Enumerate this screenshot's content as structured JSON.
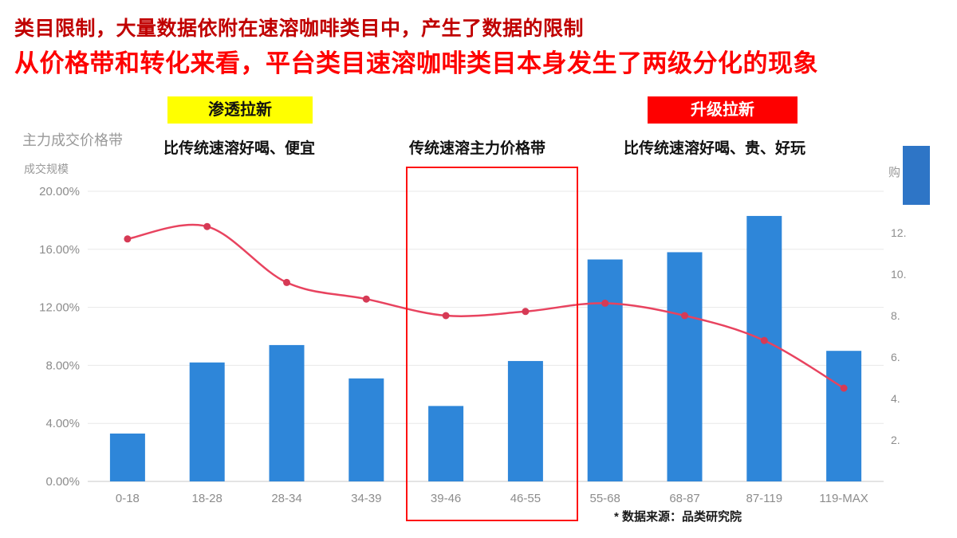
{
  "header": {
    "line1": "类目限制，大量数据依附在速溶咖啡类目中，产生了数据的限制",
    "line2": "从价格带和转化来看，平台类目速溶咖啡类目本身发生了两级分化的现象"
  },
  "annotations": {
    "penetration_badge": "渗透拉新",
    "upgrade_badge": "升级拉新",
    "left_axis_title": "主力成交价格带",
    "penetration_desc": "比传统速溶好喝、便宜",
    "traditional_label": "传统速溶主力价格带",
    "upgrade_desc": "比传统速溶好喝、贵、好玩",
    "y_axis_label": "成交规模",
    "right_axis_partial": "购",
    "source_note": "* 数据来源：品类研究院"
  },
  "colors": {
    "bar": "#2e86d9",
    "line": "#e8435f",
    "marker": "#d63a55",
    "title_dark_red": "#c00000",
    "title_red": "#fe0000",
    "badge_yellow": "#ffff00",
    "badge_red": "#fe0000",
    "highlight_border": "#fe1111",
    "axis_text": "#8c8c8c"
  },
  "chart_data": {
    "type": "combo",
    "title": "",
    "categories": [
      "0-18",
      "18-28",
      "28-34",
      "34-39",
      "39-46",
      "46-55",
      "55-68",
      "68-87",
      "87-119",
      "119-MAX"
    ],
    "series": [
      {
        "name": "成交规模",
        "type": "bar",
        "axis": "left",
        "values": [
          3.3,
          8.2,
          9.4,
          7.1,
          5.2,
          8.3,
          15.3,
          15.8,
          18.3,
          9.0
        ]
      },
      {
        "name": "购",
        "type": "line",
        "axis": "right",
        "values": [
          11.7,
          12.3,
          9.6,
          8.8,
          8.0,
          8.2,
          8.6,
          8.0,
          6.8,
          4.5
        ]
      }
    ],
    "left_axis": {
      "title": "成交规模",
      "min": 0,
      "max": 20,
      "tick_values": [
        20,
        16,
        12,
        8,
        4,
        0
      ],
      "tick_labels": [
        "20.00%",
        "16.00%",
        "12.00%",
        "8.00%",
        "4.00%",
        "0.00%"
      ]
    },
    "right_axis": {
      "title_partial": "购",
      "min": 0,
      "max": 14,
      "tick_values": [
        12,
        10,
        8,
        6,
        4,
        2
      ],
      "tick_labels": [
        "12.",
        "10.",
        "8.",
        "6.",
        "4.",
        "2."
      ]
    },
    "grid": true
  }
}
